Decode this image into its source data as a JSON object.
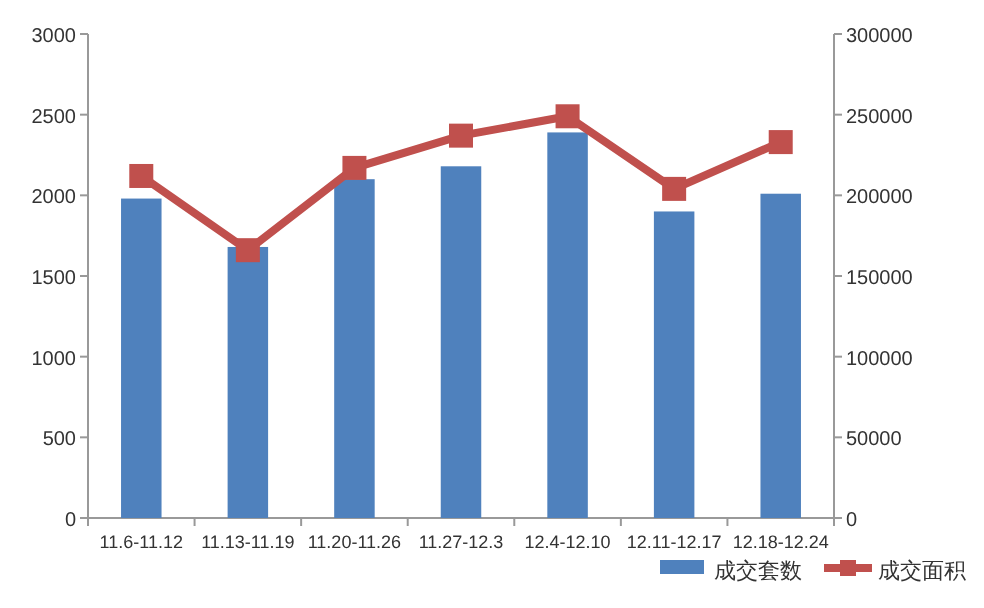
{
  "chart_data": {
    "type": "bar",
    "categories": [
      "11.6-11.12",
      "11.13-11.19",
      "11.20-11.26",
      "11.27-12.3",
      "12.4-12.10",
      "12.11-12.17",
      "12.18-12.24"
    ],
    "series": [
      {
        "name": "成交套数",
        "color": "#4f81bd",
        "values": [
          1980,
          1680,
          2100,
          2180,
          2390,
          1900,
          2010
        ]
      },
      {
        "name": "成交面积",
        "type": "line",
        "axis": "y2",
        "color": "#c0504d",
        "values": [
          212000,
          166000,
          217000,
          237000,
          249000,
          204000,
          233000
        ]
      }
    ],
    "ylim": [
      0,
      3000
    ],
    "yticks": [
      0,
      500,
      1000,
      1500,
      2000,
      2500,
      3000
    ],
    "y2lim": [
      0,
      300000
    ],
    "y2ticks": [
      0,
      50000,
      100000,
      150000,
      200000,
      250000,
      300000
    ],
    "marker": "square",
    "legend": "bottom right",
    "grid": false
  }
}
